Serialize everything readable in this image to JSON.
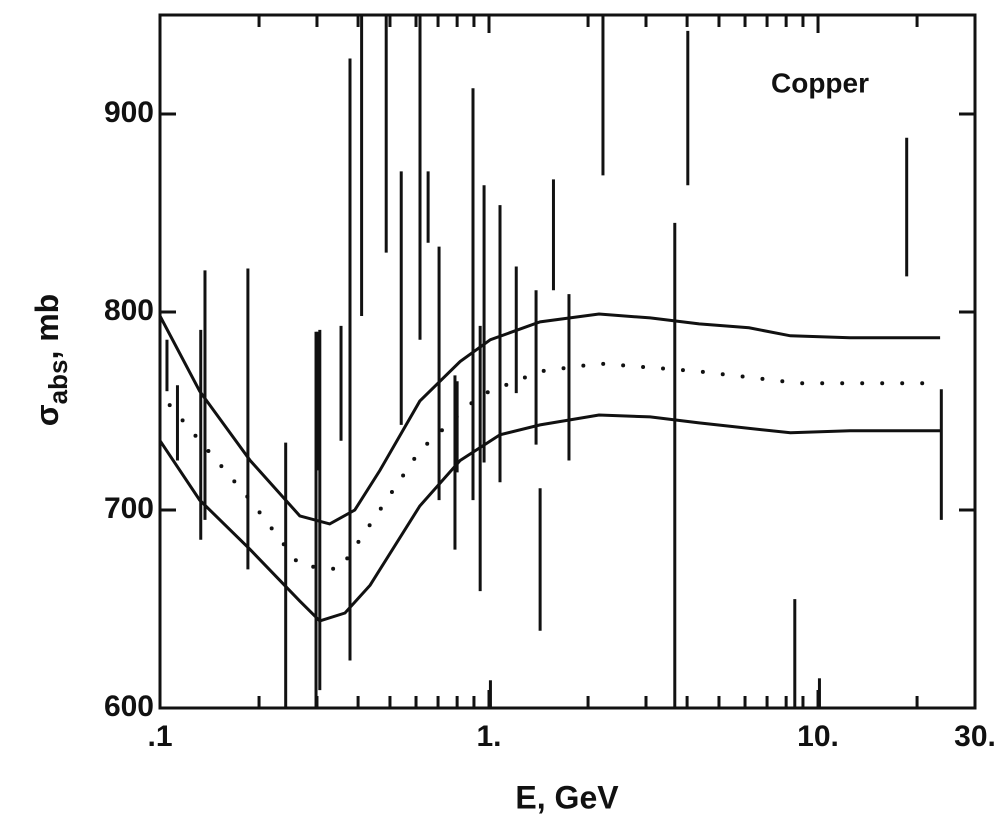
{
  "chart_data": {
    "type": "scatter",
    "annotation": "Copper",
    "xlabel": "E, GeV",
    "ylabel_parts": [
      "σ",
      "abs",
      ", mb"
    ],
    "xscale": "log",
    "xlim": [
      0.1,
      30
    ],
    "xticks": [
      {
        "value": 0.1,
        "label": ".1"
      },
      {
        "value": 1,
        "label": "1."
      },
      {
        "value": 10,
        "label": "10."
      },
      {
        "value": 30,
        "label": "30."
      }
    ],
    "xminorticks": [
      0.2,
      0.3,
      0.4,
      0.5,
      0.6,
      0.7,
      0.8,
      0.9,
      2,
      3,
      4,
      5,
      6,
      7,
      8,
      9,
      20
    ],
    "ylim": [
      600,
      950
    ],
    "yticks": [
      600,
      700,
      800,
      900
    ],
    "color": "#111111",
    "points": {
      "x": [
        0.105,
        0.113,
        0.133,
        0.137,
        0.185,
        0.241,
        0.298,
        0.306,
        0.302,
        0.355,
        0.378,
        0.41,
        0.487,
        0.541,
        0.617,
        0.653,
        0.705,
        0.788,
        0.8,
        0.894,
        0.94,
        0.966,
        1.01,
        1.08,
        1.21,
        1.39,
        1.43,
        1.57,
        1.75,
        2.22,
        3.67,
        4.02,
        8.5,
        10.1,
        18.6,
        23.7
      ],
      "values": [
        773,
        744,
        738,
        758,
        746,
        660,
        695,
        700,
        755,
        764,
        776,
        900,
        920,
        807,
        890,
        853,
        769,
        724,
        742,
        809,
        726,
        794,
        600,
        784,
        791,
        772,
        675,
        839,
        767,
        910,
        720,
        903,
        620,
        605,
        853,
        728
      ],
      "errors": [
        13,
        19,
        53,
        63,
        76,
        74,
        95,
        91,
        35,
        29,
        152,
        102,
        90,
        64,
        104,
        18,
        64,
        44,
        23,
        104,
        67,
        70,
        14,
        70,
        32,
        39,
        36,
        28,
        42,
        41,
        125,
        39,
        35,
        10,
        35,
        33
      ]
    },
    "curves": [
      {
        "style": "solid",
        "x": [
          0.1,
          0.132,
          0.188,
          0.266,
          0.328,
          0.391,
          0.466,
          0.616,
          0.817,
          1.01,
          1.43,
          2.16,
          3.09,
          4.35,
          6.17,
          8.24,
          12.5,
          23.5
        ],
        "values": [
          798,
          760,
          725,
          697,
          693,
          700,
          720,
          755,
          775,
          786,
          795,
          799,
          797,
          794,
          792,
          788,
          787,
          787
        ]
      },
      {
        "style": "dotted",
        "x": [
          0.107,
          0.132,
          0.188,
          0.266,
          0.352,
          0.466,
          0.616,
          0.94,
          1.43,
          2.16,
          4.35,
          8.81,
          23.5
        ],
        "values": [
          753,
          735,
          705,
          672,
          670,
          700,
          730,
          758,
          770,
          774,
          770,
          764,
          764
        ]
      },
      {
        "style": "solid",
        "x": [
          0.1,
          0.132,
          0.188,
          0.266,
          0.306,
          0.365,
          0.435,
          0.616,
          0.817,
          1.08,
          1.43,
          2.16,
          3.09,
          4.35,
          8.24,
          12.5,
          23.5
        ],
        "values": [
          735,
          705,
          680,
          654,
          644,
          648,
          662,
          702,
          725,
          738,
          743,
          748,
          747,
          744,
          739,
          740,
          740
        ]
      }
    ]
  }
}
